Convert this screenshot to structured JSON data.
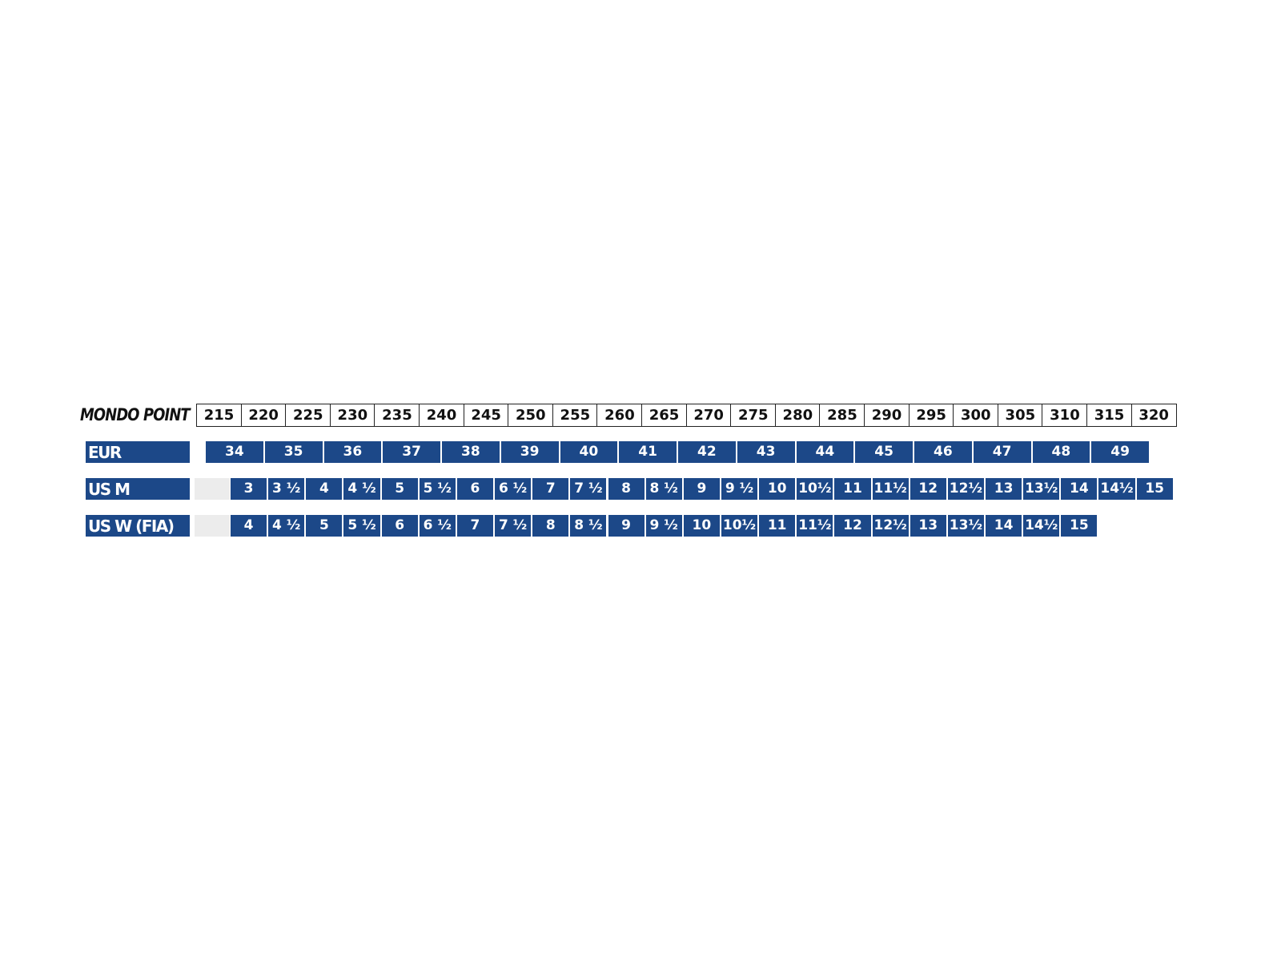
{
  "chart_data": {
    "type": "table",
    "title": "",
    "rows": [
      {
        "label": "MONDO POINT",
        "values": [
          "215",
          "220",
          "225",
          "230",
          "235",
          "240",
          "245",
          "250",
          "255",
          "260",
          "265",
          "270",
          "275",
          "280",
          "285",
          "290",
          "295",
          "300",
          "305",
          "310",
          "315",
          "320"
        ]
      },
      {
        "label": "EUR",
        "values": [
          "34",
          "35",
          "36",
          "37",
          "38",
          "39",
          "40",
          "41",
          "42",
          "43",
          "44",
          "45",
          "46",
          "47",
          "48",
          "49"
        ]
      },
      {
        "label": "US M",
        "values": [
          "3",
          "3 ½",
          "4",
          "4 ½",
          "5",
          "5 ½",
          "6",
          "6 ½",
          "7",
          "7 ½",
          "8",
          "8 ½",
          "9",
          "9 ½",
          "10",
          "10½",
          "11",
          "11½",
          "12",
          "12½",
          "13",
          "13½",
          "14",
          "14½",
          "15"
        ]
      },
      {
        "label": "US W (FIA)",
        "values": [
          "4",
          "4 ½",
          "5",
          "5 ½",
          "6",
          "6 ½",
          "7",
          "7 ½",
          "8",
          "8 ½",
          "9",
          "9 ½",
          "10",
          "10½",
          "11",
          "11½",
          "12",
          "12½",
          "13",
          "13½",
          "14",
          "14½",
          "15"
        ]
      }
    ],
    "colors": {
      "cell_fill": "#1c4888",
      "cell_text": "#ffffff",
      "blank_cell": "#ececec"
    }
  }
}
